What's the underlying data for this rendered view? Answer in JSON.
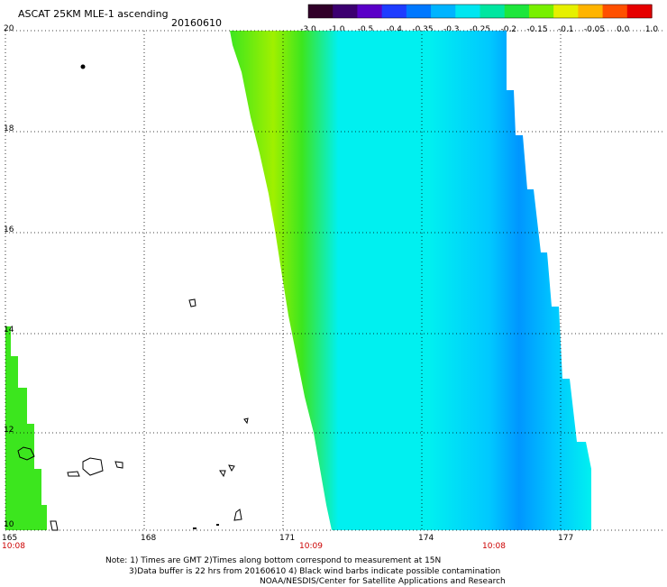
{
  "header": {
    "title": "ASCAT 25KM MLE-1 ascending",
    "date": "20160610"
  },
  "colorbar": {
    "stops": [
      "#300028",
      "#3c0070",
      "#5a00c8",
      "#1e3cff",
      "#0078ff",
      "#00b4ff",
      "#00e6f0",
      "#00e6a0",
      "#1ee63c",
      "#78f000",
      "#e6f000",
      "#ffb400",
      "#ff5000",
      "#e60000"
    ],
    "labels": [
      "-3.0",
      "-1.0",
      "-0.5",
      "-0.4",
      "-0.35",
      "-0.3",
      "-0.25",
      "-0.2",
      "-0.15",
      "-0.1",
      "-0.05",
      "0.0",
      "1.0"
    ]
  },
  "axes": {
    "lat_labels": [
      "20",
      "18",
      "16",
      "14",
      "12",
      "10"
    ],
    "lon_labels": [
      "165",
      "168",
      "171",
      "174",
      "177"
    ],
    "time_labels": [
      "10:08",
      "10:09",
      "10:08"
    ]
  },
  "footer": {
    "line1": "Note: 1) Times are GMT 2)Times along bottom correspond to measurement at 15N",
    "line2": "3)Data buffer is 22 hrs from 20160610 4) Black wind barbs indicate possible contamination",
    "line3": "NOAA/NESDIS/Center for Satellite Applications and Research"
  },
  "legend_colors": {
    "green": "#3ce61e",
    "yellow_green": "#a0f000",
    "cyan": "#00f0f0",
    "light_blue": "#00c8ff",
    "blue": "#0096ff"
  }
}
